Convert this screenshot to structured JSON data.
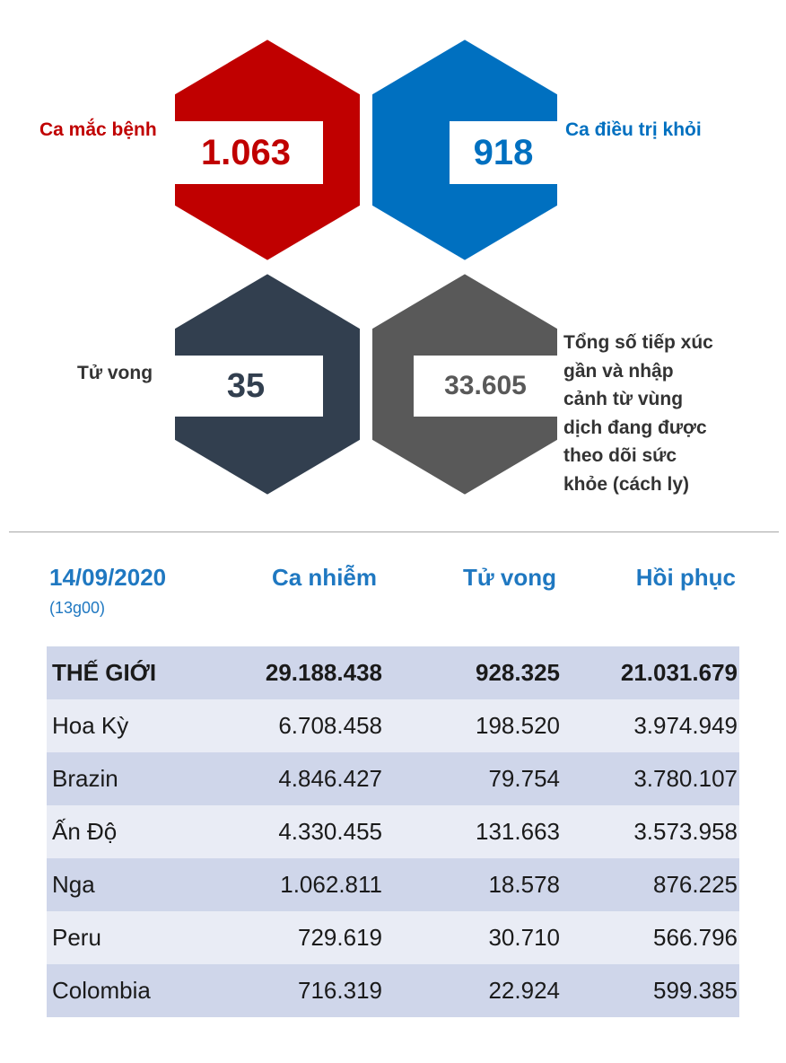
{
  "colors": {
    "cases": "#c00000",
    "recovered": "#0070c0",
    "deaths": "#323f4f",
    "contacts": "#595959",
    "table_header": "#1f78c1",
    "row_odd": "#cfd6ea",
    "row_even": "#e9ecf5"
  },
  "stats": {
    "cases": {
      "label": "Ca mắc bệnh",
      "value": "1.063"
    },
    "recovered": {
      "label": "Ca điều trị khỏi",
      "value": "918"
    },
    "deaths": {
      "label": "Tử vong",
      "value": "35"
    },
    "contacts": {
      "label_lines": [
        "Tổng số tiếp xúc",
        "gần và nhập",
        "cảnh từ vùng",
        "dịch đang được",
        "theo dõi sức",
        "khỏe (cách ly)"
      ],
      "value": "33.605"
    }
  },
  "table": {
    "date": "14/09/2020",
    "time": "(13g00)",
    "headers": [
      "Ca nhiễm",
      "Tử vong",
      "Hồi phục"
    ],
    "rows": [
      {
        "country": "THẾ GIỚI",
        "cases": "29.188.438",
        "deaths": "928.325",
        "recovered": "21.031.679"
      },
      {
        "country": "Hoa Kỳ",
        "cases": "6.708.458",
        "deaths": "198.520",
        "recovered": "3.974.949"
      },
      {
        "country": "Brazin",
        "cases": "4.846.427",
        "deaths": "79.754",
        "recovered": "3.780.107"
      },
      {
        "country": "Ấn Độ",
        "cases": "4.330.455",
        "deaths": "131.663",
        "recovered": "3.573.958"
      },
      {
        "country": "Nga",
        "cases": "1.062.811",
        "deaths": "18.578",
        "recovered": "876.225"
      },
      {
        "country": "Peru",
        "cases": "729.619",
        "deaths": "30.710",
        "recovered": "566.796"
      },
      {
        "country": "Colombia",
        "cases": "716.319",
        "deaths": "22.924",
        "recovered": "599.385"
      }
    ]
  }
}
